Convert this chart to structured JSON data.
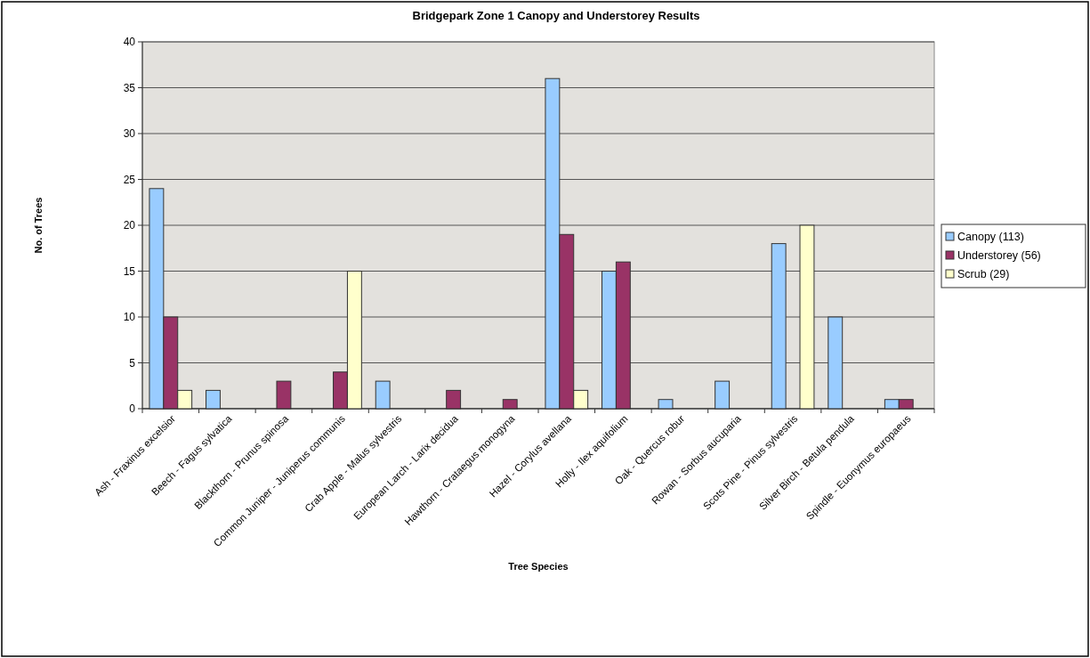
{
  "chart_data": {
    "type": "bar",
    "title": "Bridgepark Zone 1 Canopy and Understorey Results",
    "xlabel": "Tree Species",
    "ylabel": "No. of Trees",
    "categories": [
      "Ash - Fraxinus excelsior",
      "Beech - Fagus sylvatica",
      "Blackthorn - Prunus spinosa",
      "Common Juniper - Juniperus communis",
      "Crab Apple - Malus sylvestris",
      "European Larch - Larix decidua",
      "Hawthorn - Crataegus monogyna",
      "Hazel - Corylus avellana",
      "Holly - Ilex aquifolium",
      "Oak - Quercus robur",
      "Rowan - Sorbus aucuparia",
      "Scots Pine - Pinus sylvestris",
      "Silver Birch - Betula pendula",
      "Spindle - Euonymus europaeus"
    ],
    "series": [
      {
        "name": "Canopy (113)",
        "color": "#99ccff",
        "values": [
          24,
          2,
          0,
          0,
          3,
          0,
          0,
          36,
          15,
          1,
          3,
          18,
          10,
          1
        ]
      },
      {
        "name": "Understorey (56)",
        "color": "#993366",
        "values": [
          10,
          0,
          3,
          4,
          0,
          2,
          1,
          19,
          16,
          0,
          0,
          0,
          0,
          1
        ]
      },
      {
        "name": "Scrub (29)",
        "color": "#ffffcc",
        "values": [
          2,
          0,
          0,
          15,
          0,
          0,
          0,
          2,
          0,
          0,
          0,
          20,
          0,
          0
        ]
      }
    ],
    "ylim": [
      0,
      40
    ],
    "yticks": [
      0,
      5,
      10,
      15,
      20,
      25,
      30,
      35,
      40
    ],
    "grid": "y",
    "legend": "right"
  }
}
